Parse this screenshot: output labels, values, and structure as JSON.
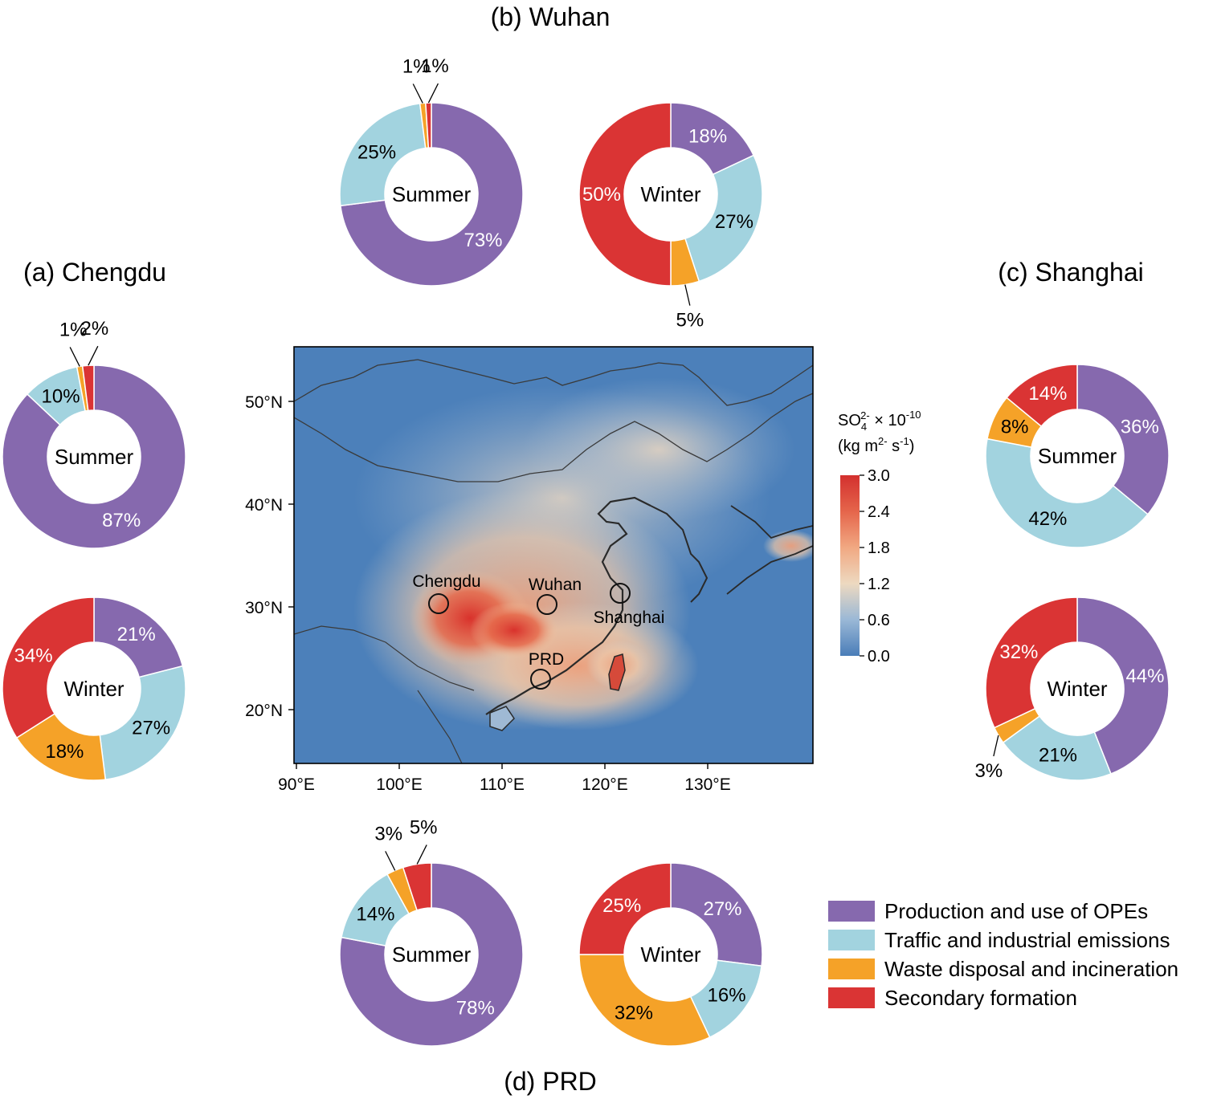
{
  "colors": {
    "opes": "#8669AE",
    "traffic": "#A2D3DF",
    "waste": "#F5A228",
    "secondary": "#DA3434"
  },
  "legend": [
    {
      "label": "Production and use of OPEs",
      "color": "#8669AE"
    },
    {
      "label": "Traffic and industrial emissions",
      "color": "#A2D3DF"
    },
    {
      "label": "Waste disposal and incineration",
      "color": "#F5A228"
    },
    {
      "label": "Secondary formation",
      "color": "#DA3434"
    }
  ],
  "titles": {
    "chengdu": "(a) Chengdu",
    "wuhan": "(b) Wuhan",
    "shanghai": "(c) Shanghai",
    "prd": "(d) PRD"
  },
  "map": {
    "lat_labels": [
      "50°N",
      "40°N",
      "30°N",
      "20°N"
    ],
    "lon_labels": [
      "90°E",
      "100°E",
      "110°E",
      "120°E",
      "130°E"
    ],
    "cities": [
      "Chengdu",
      "Wuhan",
      "Shanghai",
      "PRD"
    ],
    "colorbar_title_line1": "SO",
    "colorbar_sub": "4",
    "colorbar_sup": "2-",
    "colorbar_mult": " × 10",
    "colorbar_exp": "-10",
    "colorbar_unit_a": "(kg m",
    "colorbar_unit_sup1": "2-",
    "colorbar_unit_b": " s",
    "colorbar_unit_sup2": "-1",
    "colorbar_unit_c": ")",
    "colorbar_ticks": [
      "3.0",
      "2.4",
      "1.8",
      "1.2",
      "0.6",
      "0.0"
    ],
    "colorbar_range": [
      0.0,
      3.0
    ]
  },
  "chart_data": {
    "type": "pie",
    "variant": "donut",
    "categories": [
      "Production and use of OPEs",
      "Traffic and industrial emissions",
      "Waste disposal and incineration",
      "Secondary formation"
    ],
    "charts": [
      {
        "site": "Chengdu",
        "season": "Summer",
        "values": [
          87,
          10,
          1,
          2
        ],
        "labels": [
          "87%",
          "10%",
          "1%",
          "2%"
        ]
      },
      {
        "site": "Chengdu",
        "season": "Winter",
        "values": [
          21,
          27,
          18,
          34
        ],
        "labels": [
          "21%",
          "27%",
          "18%",
          "34%"
        ]
      },
      {
        "site": "Wuhan",
        "season": "Summer",
        "values": [
          73,
          25,
          1,
          1
        ],
        "labels": [
          "73%",
          "25%",
          "1%",
          "1%"
        ]
      },
      {
        "site": "Wuhan",
        "season": "Winter",
        "values": [
          18,
          27,
          5,
          50
        ],
        "labels": [
          "18%",
          "27%",
          "5%",
          "50%"
        ]
      },
      {
        "site": "Shanghai",
        "season": "Summer",
        "values": [
          36,
          42,
          8,
          14
        ],
        "labels": [
          "36%",
          "42%",
          "8%",
          "14%"
        ]
      },
      {
        "site": "Shanghai",
        "season": "Winter",
        "values": [
          44,
          21,
          3,
          32
        ],
        "labels": [
          "44%",
          "21%",
          "3%",
          "32%"
        ]
      },
      {
        "site": "PRD",
        "season": "Summer",
        "values": [
          78,
          14,
          3,
          5
        ],
        "labels": [
          "78%",
          "14%",
          "3%",
          "5%"
        ]
      },
      {
        "site": "PRD",
        "season": "Winter",
        "values": [
          27,
          16,
          32,
          25
        ],
        "labels": [
          "27%",
          "16%",
          "32%",
          "25%"
        ]
      }
    ]
  }
}
